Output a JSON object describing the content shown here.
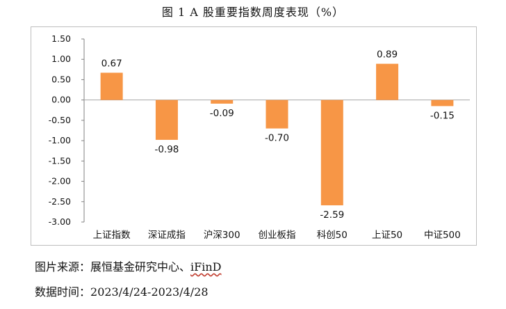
{
  "figure": {
    "title": "图 1 A 股重要指数周度表现（%）"
  },
  "chart_data": {
    "type": "bar",
    "categories": [
      "上证指数",
      "深证成指",
      "沪深300",
      "创业板指",
      "科创50",
      "上证50",
      "中证500"
    ],
    "values": [
      0.67,
      -0.98,
      -0.09,
      -0.7,
      -2.59,
      0.89,
      -0.15
    ],
    "value_labels": [
      "0.67",
      "-0.98",
      "-0.09",
      "-0.70",
      "-2.59",
      "0.89",
      "-0.15"
    ],
    "ylim": [
      -3.0,
      1.5
    ],
    "yticks": [
      1.5,
      1.0,
      0.5,
      0.0,
      -0.5,
      -1.0,
      -1.5,
      -2.0,
      -2.5,
      -3.0
    ],
    "ytick_labels": [
      "1.50",
      "1.00",
      "0.50",
      "0.00",
      "-0.50",
      "-1.00",
      "-1.50",
      "-2.00",
      "-2.50",
      "-3.00"
    ],
    "bar_color": "#F79646",
    "grid": false,
    "legend": "none"
  },
  "footer": {
    "source_label": "图片来源：",
    "source_text": "展恒基金研究中心、",
    "source_brand": "iFinD",
    "date_label": "数据时间：",
    "date_text": "2023/4/24-2023/4/28"
  }
}
